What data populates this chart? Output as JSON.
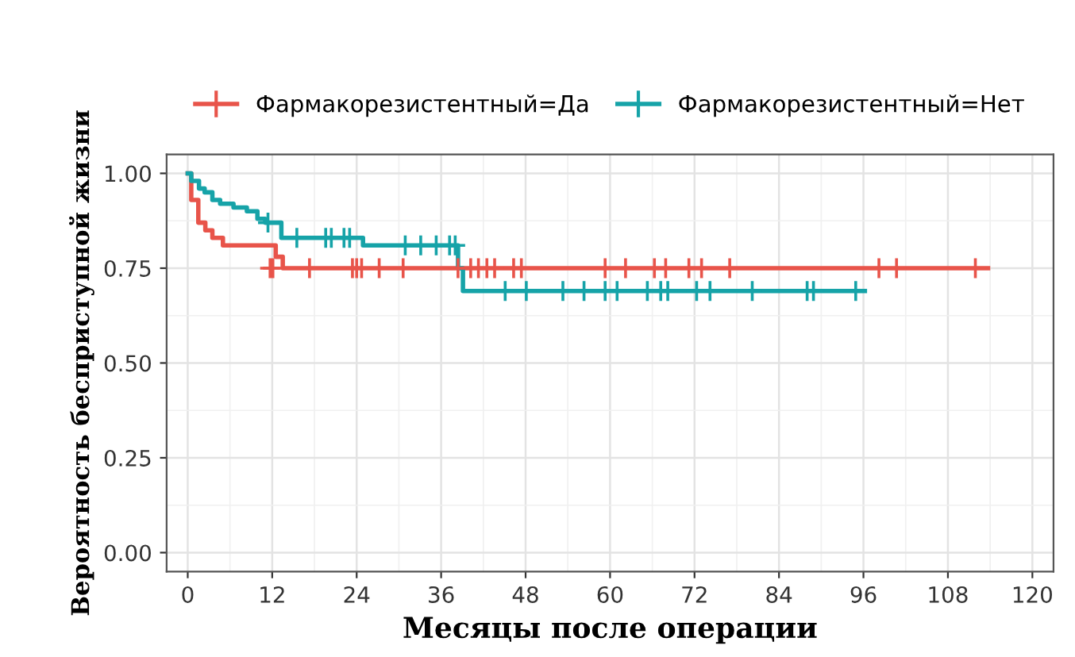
{
  "chart_data": {
    "type": "step",
    "xlabel": "Месяцы после операции",
    "ylabel": "Вероятность бесприступной жизни",
    "xlim": [
      -3,
      123
    ],
    "ylim": [
      -0.05,
      1.05
    ],
    "xticks": [
      0,
      12,
      24,
      36,
      48,
      60,
      72,
      84,
      96,
      108,
      120
    ],
    "yticks": [
      {
        "value": 0,
        "label": "0.00"
      },
      {
        "value": 0.25,
        "label": "0.25"
      },
      {
        "value": 0.5,
        "label": "0.50"
      },
      {
        "value": 0.75,
        "label": "0.75"
      },
      {
        "value": 1,
        "label": "1.00"
      }
    ],
    "grid": true,
    "legend": "top",
    "line_style": "solid",
    "series": [
      {
        "name": "Фармакорезистентный=Да",
        "color": "#e8544a",
        "x": [
          0,
          0.5,
          1.5,
          2.5,
          3.5,
          5,
          11.7,
          12.5,
          13.5,
          113.7
        ],
        "values": [
          1,
          0.93,
          0.87,
          0.85,
          0.83,
          0.81,
          0.81,
          0.78,
          0.75,
          0.75
        ]
      },
      {
        "name": "Фармакорезистентный=Нет",
        "color": "#16a3a8",
        "x": [
          0,
          0.5,
          1.6,
          2.4,
          3.5,
          4.6,
          6.5,
          8.4,
          9.9,
          11,
          13.3,
          24.9,
          38.4,
          39.1,
          96.2
        ],
        "values": [
          1,
          0.98,
          0.96,
          0.95,
          0.93,
          0.92,
          0.91,
          0.9,
          0.88,
          0.87,
          0.83,
          0.81,
          0.75,
          0.69,
          0.69
        ]
      },
      {
        "type": "scatter",
        "marker": "cross",
        "color": "#e8544a",
        "x": [
          11.7,
          12.1,
          17.3,
          23.4,
          24,
          24.7,
          27.2,
          30.6,
          38.4,
          40.2,
          41.3,
          42.5,
          43.6,
          46.3,
          47.4,
          59.3,
          62.2,
          66.3,
          67.9,
          71.2,
          73,
          77,
          98.2,
          100.7,
          111.9
        ],
        "values": [
          0.75,
          0.75,
          0.75,
          0.75,
          0.75,
          0.75,
          0.75,
          0.75,
          0.75,
          0.75,
          0.75,
          0.75,
          0.75,
          0.75,
          0.75,
          0.75,
          0.75,
          0.75,
          0.75,
          0.75,
          0.75,
          0.75,
          0.75,
          0.75,
          0.75
        ]
      },
      {
        "type": "scatter",
        "marker": "cross",
        "color": "#16a3a8",
        "x": [
          11.4,
          15.5,
          19.6,
          20.4,
          22.2,
          23,
          30.9,
          33.1,
          35.3,
          37.2,
          38,
          45.1,
          48.1,
          53.3,
          56.3,
          59.3,
          61,
          65.3,
          67.2,
          68.2,
          72.3,
          74.2,
          80.2,
          88,
          88.9,
          94.9
        ],
        "values": [
          0.87,
          0.83,
          0.83,
          0.83,
          0.83,
          0.83,
          0.81,
          0.81,
          0.81,
          0.81,
          0.81,
          0.69,
          0.69,
          0.69,
          0.69,
          0.69,
          0.69,
          0.69,
          0.69,
          0.69,
          0.69,
          0.69,
          0.69,
          0.69,
          0.69,
          0.69
        ]
      }
    ]
  }
}
